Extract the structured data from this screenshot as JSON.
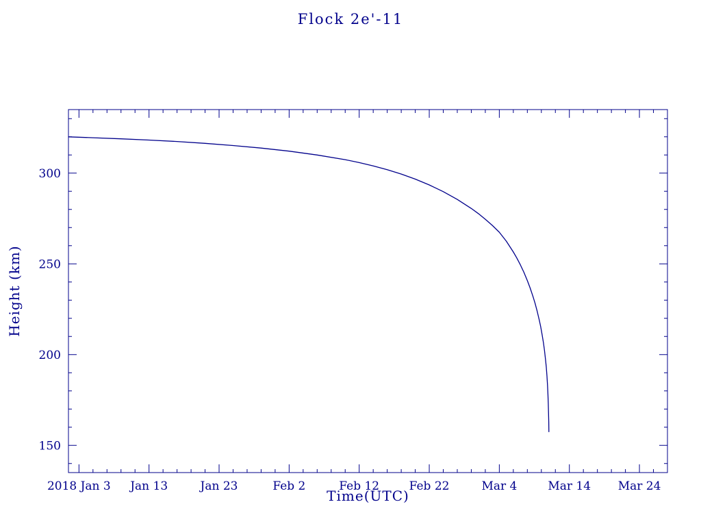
{
  "page": {
    "background": "#ffffff"
  },
  "chart_data": {
    "type": "line",
    "title": "Flock 2e'-11",
    "xlabel": "Time(UTC)",
    "ylabel": "Height (km)",
    "color": "#00008b",
    "legend": "none",
    "grid": false,
    "x_axis": {
      "unit": "days since 2018-01-01",
      "range": [
        0.5,
        86.0
      ],
      "minor_tick_interval": 2,
      "major_ticks": [
        {
          "value": 2,
          "label": "2018 Jan 3"
        },
        {
          "value": 12,
          "label": "Jan 13"
        },
        {
          "value": 22,
          "label": "Jan 23"
        },
        {
          "value": 32,
          "label": "Feb 2"
        },
        {
          "value": 42,
          "label": "Feb 12"
        },
        {
          "value": 52,
          "label": "Feb 22"
        },
        {
          "value": 62,
          "label": "Mar 4"
        },
        {
          "value": 72,
          "label": "Mar 14"
        },
        {
          "value": 82,
          "label": "Mar 24"
        }
      ]
    },
    "y_axis": {
      "unit": "km",
      "range": [
        135,
        335
      ],
      "minor_tick_interval": 10,
      "major_ticks": [
        {
          "value": 150,
          "label": "150"
        },
        {
          "value": 200,
          "label": "200"
        },
        {
          "value": 250,
          "label": "250"
        },
        {
          "value": 300,
          "label": "300"
        }
      ]
    },
    "series": [
      {
        "name": "Flock 2e'-11 orbital height",
        "points": [
          [
            0.5,
            320.0
          ],
          [
            4,
            319.5
          ],
          [
            8,
            318.9
          ],
          [
            12,
            318.2
          ],
          [
            16,
            317.4
          ],
          [
            20,
            316.4
          ],
          [
            24,
            315.2
          ],
          [
            28,
            313.8
          ],
          [
            32,
            312.1
          ],
          [
            36,
            310.0
          ],
          [
            40,
            307.4
          ],
          [
            42,
            305.8
          ],
          [
            44,
            304.0
          ],
          [
            46,
            301.9
          ],
          [
            48,
            299.5
          ],
          [
            50,
            296.7
          ],
          [
            52,
            293.5
          ],
          [
            54,
            289.8
          ],
          [
            56,
            285.5
          ],
          [
            58,
            280.5
          ],
          [
            59,
            277.7
          ],
          [
            60,
            274.6
          ],
          [
            61,
            271.2
          ],
          [
            62,
            267.4
          ],
          [
            63,
            262.5
          ],
          [
            64,
            256.5
          ],
          [
            64.5,
            253.2
          ],
          [
            65,
            249.5
          ],
          [
            65.5,
            245.4
          ],
          [
            66,
            240.8
          ],
          [
            66.4,
            236.7
          ],
          [
            66.8,
            232.1
          ],
          [
            67.1,
            228.3
          ],
          [
            67.4,
            224.0
          ],
          [
            67.7,
            219.1
          ],
          [
            67.9,
            215.4
          ],
          [
            68.1,
            211.2
          ],
          [
            68.3,
            206.4
          ],
          [
            68.45,
            202.2
          ],
          [
            68.6,
            197.2
          ],
          [
            68.7,
            193.1
          ],
          [
            68.8,
            188.1
          ],
          [
            68.88,
            183.1
          ],
          [
            68.94,
            178.3
          ],
          [
            68.99,
            173.0
          ],
          [
            69.03,
            167.6
          ],
          [
            69.06,
            163.0
          ],
          [
            69.08,
            157.5
          ]
        ]
      }
    ]
  }
}
